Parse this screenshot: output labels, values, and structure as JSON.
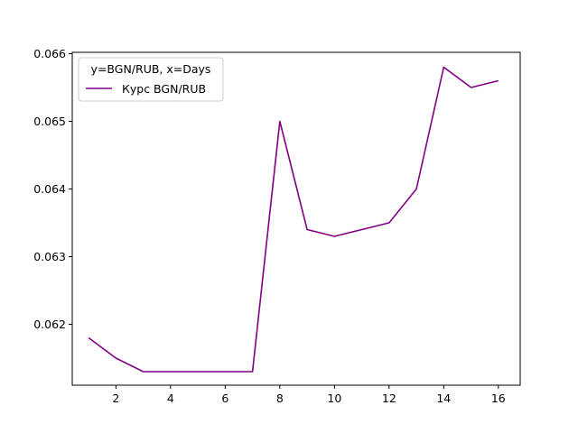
{
  "chart_data": {
    "type": "line",
    "title": "",
    "xlabel": "",
    "ylabel": "",
    "legend_title": "y=BGN/RUB, x=Days",
    "legend_position": "upper-left",
    "grid": false,
    "xlim": [
      0.4,
      16.8
    ],
    "ylim": [
      0.0611,
      0.06602
    ],
    "x_ticks": [
      2,
      4,
      6,
      8,
      10,
      12,
      14,
      16
    ],
    "y_ticks": [
      0.062,
      0.063,
      0.064,
      0.065,
      0.066
    ],
    "series": [
      {
        "name": "Курс BGN/RUB",
        "color": "#800080",
        "x": [
          1,
          2,
          3,
          4,
          5,
          6,
          7,
          8,
          9,
          10,
          11,
          12,
          13,
          14,
          15,
          16
        ],
        "y": [
          0.0618,
          0.0615,
          0.0613,
          0.0613,
          0.0613,
          0.0613,
          0.0613,
          0.065,
          0.0634,
          0.0633,
          0.0634,
          0.0635,
          0.064,
          0.0658,
          0.0655,
          0.0656
        ]
      }
    ]
  }
}
